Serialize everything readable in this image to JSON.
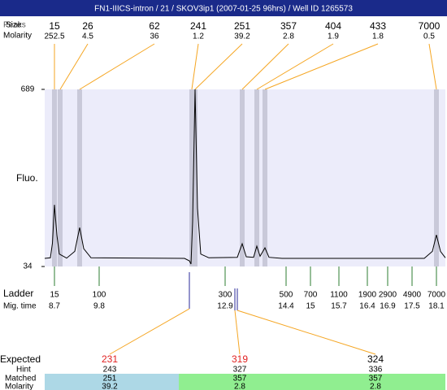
{
  "title": "FN1-IIICS-intron / 21 / SKOV3ip1 (2007-01-25 96hrs) / Well ID 1265573",
  "peak_table": {
    "row_labels": [
      "Peaks",
      "Size",
      "Molarity"
    ],
    "sizes": [
      15,
      26,
      62,
      241,
      251,
      357,
      404,
      433,
      7000
    ],
    "molarities": [
      252.5,
      4.5,
      36,
      1.2,
      39.2,
      2.8,
      1.9,
      1.8,
      0.5
    ],
    "times": [
      8.7,
      8.84,
      9.32,
      12.08,
      12.16,
      13.32,
      13.68,
      13.88,
      18.1
    ]
  },
  "chart_data": {
    "type": "line",
    "y_label": "Fluo.",
    "color": "#000000",
    "band_color": "#c9c9d9",
    "background": "#ececfa",
    "xlim": [
      8.46,
      18.32
    ],
    "ylim": [
      34,
      689
    ],
    "yticks": [
      34,
      689
    ],
    "x": [
      8.46,
      8.6,
      8.65,
      8.7,
      8.76,
      8.82,
      9.0,
      9.2,
      9.32,
      9.42,
      9.6,
      11.9,
      12.02,
      12.06,
      12.1,
      12.16,
      12.22,
      12.3,
      12.5,
      13.2,
      13.32,
      13.42,
      13.6,
      13.68,
      13.76,
      13.88,
      13.98,
      14.3,
      17.8,
      18.0,
      18.1,
      18.2,
      18.32
    ],
    "values": [
      64,
      66,
      120,
      262,
      150,
      80,
      65,
      90,
      178,
      100,
      66,
      64,
      55,
      43,
      200,
      689,
      250,
      80,
      66,
      68,
      118,
      70,
      68,
      109,
      72,
      103,
      68,
      64,
      64,
      90,
      151,
      90,
      66
    ]
  },
  "ladder": {
    "label": "Ladder",
    "time_label": "Mig. time",
    "color": "#2e7d32",
    "sizes": [
      15,
      100,
      300,
      500,
      700,
      1100,
      1900,
      2900,
      4900,
      7000
    ],
    "times": [
      8.7,
      9.8,
      12.9,
      14.4,
      15,
      15.7,
      16.4,
      16.9,
      17.5,
      18.1
    ]
  },
  "expected": {
    "row_labels": [
      "Expected",
      "Hint",
      "Matched",
      "Molarity"
    ],
    "expected": [
      231,
      319,
      324
    ],
    "hint": [
      243,
      327,
      336
    ],
    "matched": [
      251,
      357,
      357
    ],
    "molarity": [
      39.2,
      2.8,
      2.8
    ]
  }
}
